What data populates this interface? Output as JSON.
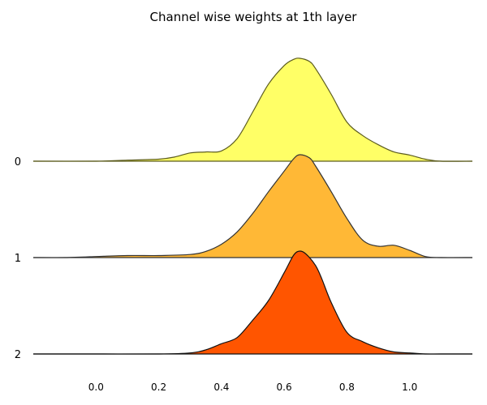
{
  "chart_data": {
    "type": "ridgeline",
    "title": "Channel wise weights at 1th layer",
    "xlabel": "",
    "ylabel": "",
    "xlim": [
      -0.2,
      1.2
    ],
    "x_ticks": [
      "0.0",
      "0.2",
      "0.4",
      "0.6",
      "0.8",
      "1.0"
    ],
    "x_tick_values": [
      0.0,
      0.2,
      0.4,
      0.6,
      0.8,
      1.0
    ],
    "grid": false,
    "series": [
      {
        "label": "0",
        "color": "#ffff66",
        "edge": "#5c5c1f",
        "x": [
          -0.2,
          0.0,
          0.1,
          0.2,
          0.25,
          0.3,
          0.35,
          0.4,
          0.45,
          0.5,
          0.55,
          0.6,
          0.63,
          0.65,
          0.68,
          0.7,
          0.75,
          0.8,
          0.85,
          0.9,
          0.95,
          1.0,
          1.05,
          1.1,
          1.2
        ],
        "density": [
          0,
          0.0,
          0.01,
          0.02,
          0.04,
          0.08,
          0.09,
          0.1,
          0.22,
          0.48,
          0.75,
          0.93,
          0.99,
          1.0,
          0.97,
          0.9,
          0.65,
          0.38,
          0.25,
          0.16,
          0.09,
          0.06,
          0.02,
          0.0,
          0
        ]
      },
      {
        "label": "1",
        "color": "#ffb836",
        "edge": "#333333",
        "x": [
          -0.2,
          -0.1,
          0.0,
          0.1,
          0.2,
          0.3,
          0.35,
          0.4,
          0.45,
          0.5,
          0.55,
          0.6,
          0.63,
          0.65,
          0.68,
          0.7,
          0.75,
          0.8,
          0.85,
          0.9,
          0.95,
          1.0,
          1.05,
          1.1,
          1.2
        ],
        "density": [
          0,
          0.0,
          0.01,
          0.02,
          0.02,
          0.03,
          0.06,
          0.13,
          0.25,
          0.43,
          0.64,
          0.84,
          0.96,
          1.0,
          0.97,
          0.89,
          0.64,
          0.38,
          0.17,
          0.11,
          0.12,
          0.07,
          0.01,
          0.0,
          0
        ]
      },
      {
        "label": "2",
        "color": "#ff5500",
        "edge": "#111111",
        "x": [
          -0.2,
          0.0,
          0.2,
          0.3,
          0.35,
          0.4,
          0.45,
          0.5,
          0.55,
          0.6,
          0.63,
          0.65,
          0.67,
          0.7,
          0.72,
          0.75,
          0.8,
          0.85,
          0.9,
          0.95,
          1.0,
          1.05,
          1.1,
          1.2
        ],
        "density": [
          0,
          0.0,
          0.0,
          0.01,
          0.04,
          0.1,
          0.16,
          0.33,
          0.52,
          0.79,
          0.96,
          1.0,
          0.97,
          0.86,
          0.73,
          0.5,
          0.21,
          0.12,
          0.06,
          0.02,
          0.01,
          0.0,
          0.0,
          0
        ]
      }
    ]
  }
}
